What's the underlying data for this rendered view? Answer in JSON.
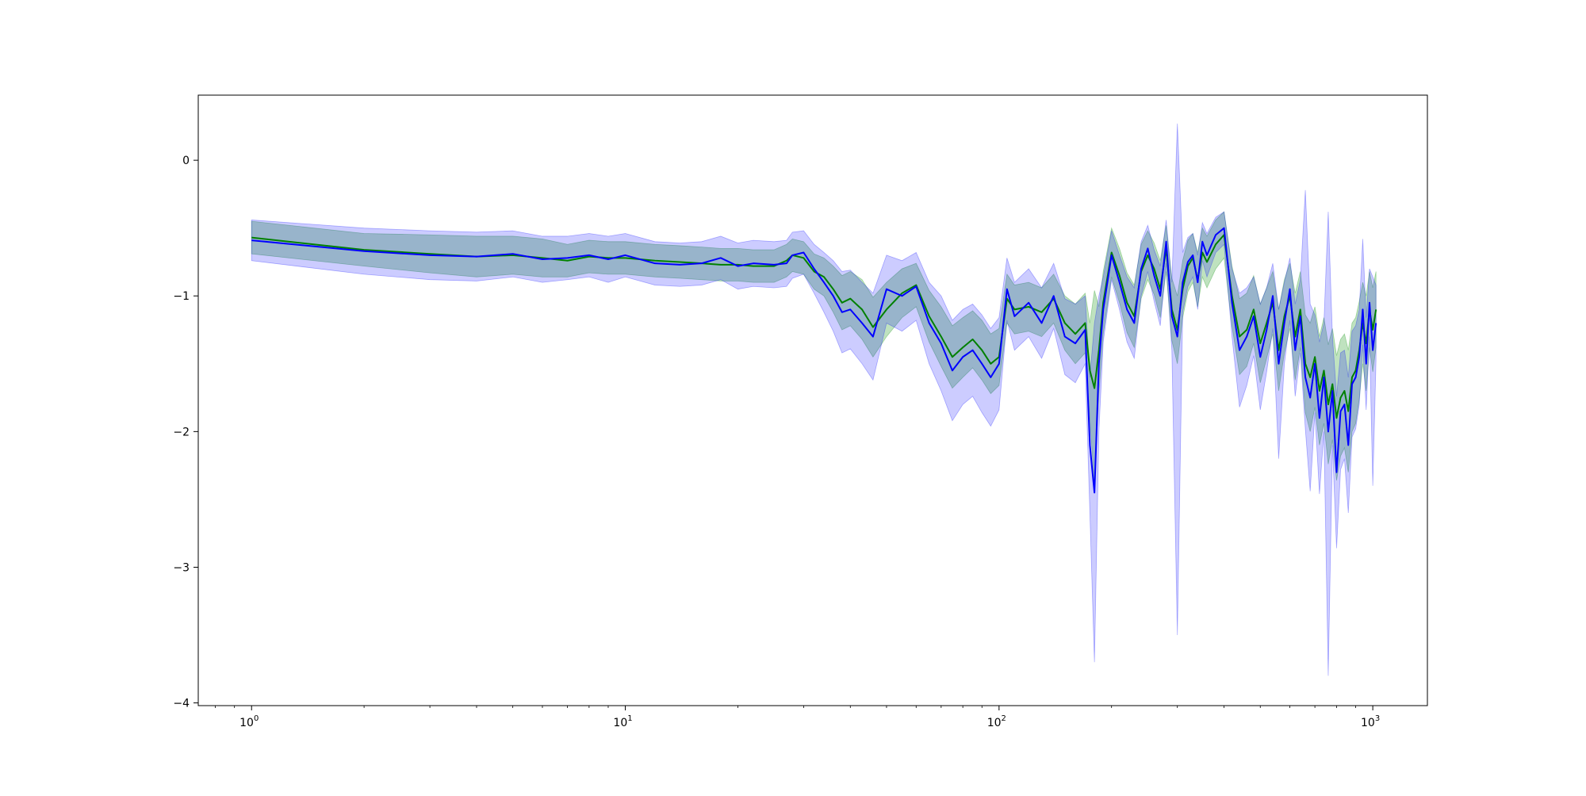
{
  "chart_data": {
    "type": "line",
    "title": "",
    "xlabel": "",
    "ylabel": "",
    "xscale": "log",
    "xlim": [
      0.72,
      1400
    ],
    "ylim": [
      -4.02,
      0.48
    ],
    "grid": false,
    "legend": "none",
    "x_ticks": [
      {
        "value": 1,
        "base": "10",
        "exp": "0"
      },
      {
        "value": 10,
        "base": "10",
        "exp": "1"
      },
      {
        "value": 100,
        "base": "10",
        "exp": "2"
      },
      {
        "value": 1000,
        "base": "10",
        "exp": "3"
      }
    ],
    "y_ticks": [
      {
        "value": 0,
        "label": "0"
      },
      {
        "value": -1,
        "label": "−1"
      },
      {
        "value": -2,
        "label": "−2"
      },
      {
        "value": -3,
        "label": "−3"
      },
      {
        "value": -4,
        "label": "−4"
      }
    ],
    "series": [
      {
        "color": "#008000",
        "band_color": "#2ca02c",
        "band_opacity": 0.3,
        "x": [
          1,
          2,
          3,
          4,
          5,
          6,
          7,
          8,
          9,
          10,
          12,
          14,
          16,
          18,
          20,
          22,
          25,
          27,
          28,
          30,
          32,
          34,
          36,
          38,
          40,
          43,
          46,
          50,
          55,
          60,
          65,
          70,
          75,
          80,
          85,
          90,
          95,
          100,
          105,
          110,
          120,
          130,
          140,
          150,
          160,
          170,
          175,
          180,
          185,
          190,
          200,
          210,
          220,
          230,
          240,
          250,
          260,
          270,
          280,
          290,
          300,
          310,
          320,
          330,
          340,
          350,
          360,
          380,
          400,
          420,
          440,
          460,
          480,
          500,
          520,
          540,
          560,
          580,
          600,
          620,
          640,
          660,
          680,
          700,
          720,
          740,
          760,
          780,
          800,
          820,
          840,
          860,
          880,
          900,
          920,
          940,
          960,
          980,
          1000,
          1020
        ],
        "y": [
          -0.57,
          -0.66,
          -0.69,
          -0.71,
          -0.7,
          -0.72,
          -0.74,
          -0.71,
          -0.72,
          -0.72,
          -0.74,
          -0.75,
          -0.76,
          -0.77,
          -0.77,
          -0.78,
          -0.78,
          -0.74,
          -0.7,
          -0.72,
          -0.82,
          -0.86,
          -0.95,
          -1.05,
          -1.02,
          -1.1,
          -1.23,
          -1.1,
          -0.98,
          -0.92,
          -1.15,
          -1.3,
          -1.45,
          -1.38,
          -1.32,
          -1.4,
          -1.5,
          -1.45,
          -1.02,
          -1.1,
          -1.08,
          -1.12,
          -1.02,
          -1.2,
          -1.28,
          -1.2,
          -1.55,
          -1.68,
          -1.4,
          -1.05,
          -0.68,
          -0.85,
          -1.05,
          -1.15,
          -0.82,
          -0.7,
          -0.8,
          -0.95,
          -0.65,
          -1.1,
          -1.25,
          -0.95,
          -0.78,
          -0.72,
          -0.88,
          -0.68,
          -0.75,
          -0.62,
          -0.55,
          -1.0,
          -1.3,
          -1.25,
          -1.1,
          -1.35,
          -1.2,
          -1.05,
          -1.4,
          -1.15,
          -1.0,
          -1.3,
          -1.1,
          -1.5,
          -1.6,
          -1.45,
          -1.7,
          -1.55,
          -1.8,
          -1.65,
          -1.9,
          -1.75,
          -1.7,
          -1.85,
          -1.6,
          -1.55,
          -1.4,
          -1.2,
          -1.35,
          -1.1,
          -1.25,
          -1.1
        ],
        "lower": [
          -0.69,
          -0.78,
          -0.83,
          -0.86,
          -0.84,
          -0.86,
          -0.86,
          -0.83,
          -0.84,
          -0.84,
          -0.86,
          -0.87,
          -0.88,
          -0.89,
          -0.89,
          -0.9,
          -0.9,
          -0.86,
          -0.82,
          -0.84,
          -0.95,
          -1.0,
          -1.12,
          -1.25,
          -1.22,
          -1.32,
          -1.45,
          -1.3,
          -1.16,
          -1.08,
          -1.34,
          -1.52,
          -1.68,
          -1.6,
          -1.53,
          -1.62,
          -1.72,
          -1.66,
          -1.2,
          -1.28,
          -1.26,
          -1.3,
          -1.2,
          -1.4,
          -1.5,
          -1.42,
          -1.9,
          -2.4,
          -1.72,
          -1.28,
          -0.86,
          -1.05,
          -1.27,
          -1.38,
          -1.02,
          -0.88,
          -0.99,
          -1.16,
          -0.82,
          -1.33,
          -1.5,
          -1.16,
          -0.97,
          -0.9,
          -1.08,
          -0.86,
          -0.94,
          -0.8,
          -0.72,
          -1.22,
          -1.58,
          -1.52,
          -1.35,
          -1.64,
          -1.46,
          -1.28,
          -1.7,
          -1.42,
          -1.24,
          -1.62,
          -1.38,
          -1.86,
          -2.0,
          -1.82,
          -2.1,
          -1.94,
          -2.24,
          -2.06,
          -2.36,
          -2.18,
          -2.12,
          -2.3,
          -2.0,
          -1.94,
          -1.76,
          -1.5,
          -1.7,
          -1.38,
          -1.56,
          -1.38
        ],
        "upper": [
          -0.45,
          -0.54,
          -0.55,
          -0.56,
          -0.56,
          -0.58,
          -0.62,
          -0.59,
          -0.6,
          -0.6,
          -0.62,
          -0.63,
          -0.64,
          -0.65,
          -0.65,
          -0.66,
          -0.66,
          -0.62,
          -0.58,
          -0.6,
          -0.69,
          -0.72,
          -0.78,
          -0.85,
          -0.82,
          -0.88,
          -1.01,
          -0.9,
          -0.8,
          -0.76,
          -0.96,
          -1.08,
          -1.22,
          -1.16,
          -1.11,
          -1.18,
          -1.28,
          -1.24,
          -0.84,
          -0.92,
          -0.9,
          -0.94,
          -0.84,
          -1.0,
          -1.06,
          -0.98,
          -1.2,
          -0.96,
          -1.08,
          -0.82,
          -0.5,
          -0.65,
          -0.83,
          -0.92,
          -0.62,
          -0.52,
          -0.61,
          -0.74,
          -0.48,
          -0.87,
          -1.0,
          -0.74,
          -0.59,
          -0.54,
          -0.68,
          -0.5,
          -0.56,
          -0.44,
          -0.38,
          -0.78,
          -1.02,
          -0.98,
          -0.85,
          -1.06,
          -0.94,
          -0.82,
          -1.1,
          -0.88,
          -0.76,
          -0.98,
          -0.82,
          -1.14,
          -1.2,
          -1.08,
          -1.3,
          -1.16,
          -1.36,
          -1.24,
          -1.44,
          -1.32,
          -1.28,
          -1.4,
          -1.2,
          -1.16,
          -1.04,
          -0.9,
          -1.0,
          -0.82,
          -0.94,
          -0.82
        ]
      },
      {
        "color": "#0000ff",
        "band_color": "#0000ff",
        "band_opacity": 0.2,
        "x": [
          1,
          2,
          3,
          4,
          5,
          6,
          7,
          8,
          9,
          10,
          12,
          14,
          16,
          18,
          20,
          22,
          25,
          27,
          28,
          30,
          32,
          34,
          36,
          38,
          40,
          43,
          46,
          50,
          55,
          60,
          65,
          70,
          75,
          80,
          85,
          90,
          95,
          100,
          105,
          110,
          120,
          130,
          140,
          150,
          160,
          170,
          175,
          180,
          185,
          190,
          200,
          210,
          220,
          230,
          240,
          250,
          260,
          270,
          280,
          290,
          300,
          310,
          320,
          330,
          340,
          350,
          360,
          380,
          400,
          420,
          440,
          460,
          480,
          500,
          520,
          540,
          560,
          580,
          600,
          620,
          640,
          660,
          680,
          700,
          720,
          740,
          760,
          780,
          800,
          820,
          840,
          860,
          880,
          900,
          920,
          940,
          960,
          980,
          1000,
          1020
        ],
        "y": [
          -0.59,
          -0.67,
          -0.7,
          -0.71,
          -0.69,
          -0.73,
          -0.72,
          -0.7,
          -0.73,
          -0.7,
          -0.76,
          -0.77,
          -0.76,
          -0.72,
          -0.78,
          -0.76,
          -0.77,
          -0.76,
          -0.7,
          -0.68,
          -0.8,
          -0.9,
          -1.0,
          -1.12,
          -1.1,
          -1.2,
          -1.3,
          -0.95,
          -1.0,
          -0.93,
          -1.2,
          -1.35,
          -1.55,
          -1.45,
          -1.4,
          -1.5,
          -1.6,
          -1.5,
          -0.95,
          -1.15,
          -1.05,
          -1.2,
          -1.0,
          -1.3,
          -1.35,
          -1.25,
          -2.1,
          -2.45,
          -1.5,
          -1.1,
          -0.7,
          -0.9,
          -1.1,
          -1.2,
          -0.8,
          -0.65,
          -0.85,
          -1.0,
          -0.6,
          -1.15,
          -1.3,
          -0.9,
          -0.75,
          -0.7,
          -0.9,
          -0.6,
          -0.7,
          -0.55,
          -0.5,
          -1.05,
          -1.4,
          -1.3,
          -1.15,
          -1.45,
          -1.25,
          -1.0,
          -1.5,
          -1.2,
          -0.95,
          -1.4,
          -1.15,
          -1.6,
          -1.75,
          -1.5,
          -1.9,
          -1.6,
          -2.0,
          -1.7,
          -2.3,
          -1.85,
          -1.8,
          -2.1,
          -1.65,
          -1.6,
          -1.45,
          -1.1,
          -1.5,
          -1.05,
          -1.4,
          -1.2
        ],
        "lower": [
          -0.74,
          -0.84,
          -0.88,
          -0.89,
          -0.86,
          -0.9,
          -0.88,
          -0.86,
          -0.9,
          -0.86,
          -0.92,
          -0.93,
          -0.92,
          -0.88,
          -0.95,
          -0.93,
          -0.94,
          -0.93,
          -0.87,
          -0.84,
          -0.98,
          -1.12,
          -1.26,
          -1.42,
          -1.39,
          -1.5,
          -1.62,
          -1.2,
          -1.26,
          -1.18,
          -1.5,
          -1.7,
          -1.92,
          -1.8,
          -1.74,
          -1.86,
          -1.96,
          -1.84,
          -1.18,
          -1.4,
          -1.3,
          -1.46,
          -1.24,
          -1.58,
          -1.64,
          -1.5,
          -2.6,
          -3.7,
          -2.0,
          -1.34,
          -0.88,
          -1.1,
          -1.34,
          -1.46,
          -1.0,
          -0.82,
          -1.04,
          -1.22,
          -0.76,
          -1.4,
          -3.5,
          -1.12,
          -0.93,
          -0.86,
          -1.1,
          -0.74,
          -0.86,
          -0.68,
          -0.62,
          -1.3,
          -1.82,
          -1.66,
          -1.44,
          -1.84,
          -1.56,
          -1.24,
          -2.2,
          -1.5,
          -1.18,
          -1.74,
          -1.42,
          -1.98,
          -2.44,
          -1.86,
          -2.46,
          -2.0,
          -3.8,
          -2.1,
          -2.86,
          -2.28,
          -2.2,
          -2.6,
          -2.04,
          -1.98,
          -1.8,
          -1.36,
          -1.84,
          -1.3,
          -2.4,
          -1.48
        ],
        "upper": [
          -0.44,
          -0.5,
          -0.52,
          -0.53,
          -0.52,
          -0.56,
          -0.56,
          -0.54,
          -0.56,
          -0.54,
          -0.6,
          -0.61,
          -0.6,
          -0.56,
          -0.61,
          -0.59,
          -0.6,
          -0.59,
          -0.53,
          -0.52,
          -0.62,
          -0.68,
          -0.74,
          -0.82,
          -0.81,
          -0.9,
          -0.98,
          -0.7,
          -0.74,
          -0.68,
          -0.9,
          -1.0,
          -1.18,
          -1.1,
          -1.06,
          -1.14,
          -1.24,
          -1.16,
          -0.72,
          -0.9,
          -0.8,
          -0.94,
          -0.76,
          -1.02,
          -1.06,
          -1.0,
          -1.6,
          -1.2,
          -1.0,
          -0.86,
          -0.52,
          -0.7,
          -0.86,
          -0.94,
          -0.6,
          -0.48,
          -0.66,
          -0.78,
          -0.44,
          -0.9,
          0.27,
          -0.68,
          -0.57,
          -0.54,
          -0.7,
          -0.46,
          -0.54,
          -0.42,
          -0.38,
          -0.8,
          -0.98,
          -0.94,
          -0.86,
          -1.06,
          -0.94,
          -0.76,
          -1.1,
          -0.9,
          -0.72,
          -1.06,
          -0.88,
          -0.22,
          -1.06,
          -1.14,
          -1.34,
          -1.2,
          -0.38,
          -1.3,
          -1.74,
          -1.42,
          -1.4,
          -1.6,
          -1.26,
          -1.22,
          -1.1,
          -0.58,
          -1.16,
          -0.8,
          -0.86,
          -0.92
        ]
      }
    ]
  }
}
